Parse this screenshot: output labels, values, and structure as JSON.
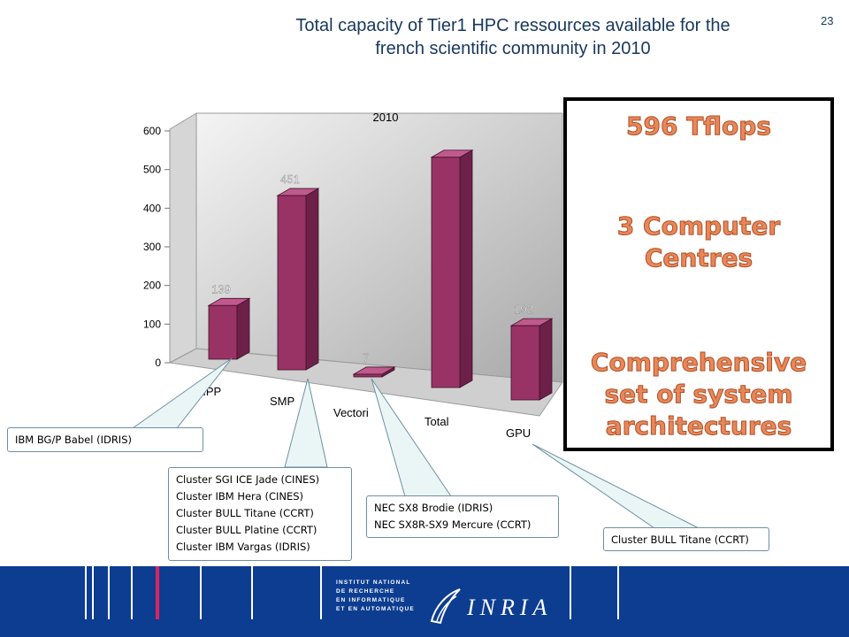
{
  "header": {
    "title_line1": "Total capacity of Tier1 HPC ressources available for the",
    "title_line2": "french scientific community in 2010",
    "page_number": "23"
  },
  "chart_data": {
    "type": "bar",
    "title": "2010",
    "categories": [
      "MPP",
      "SMP",
      "Vectori",
      "Total",
      "GPU"
    ],
    "values": [
      139,
      451,
      7,
      596,
      192
    ],
    "data_labels": [
      "139",
      "451",
      "7",
      "",
      "192"
    ],
    "ylim": [
      0,
      600
    ],
    "yticks": [
      "0",
      "100",
      "200",
      "300",
      "400",
      "500",
      "600"
    ],
    "xlabel": "",
    "ylabel": "",
    "bar_color": "#993366",
    "grid": false
  },
  "info_box": {
    "line1": "596 Tflops",
    "line2a": "3 Computer",
    "line2b": "Centres",
    "line3a": "Comprehensive",
    "line3b": "set of system",
    "line3c": "architectures"
  },
  "callouts": {
    "mpp": [
      "IBM BG/P Babel (IDRIS)"
    ],
    "smp": [
      "Cluster SGI ICE Jade (CINES)",
      "Cluster IBM Hera (CINES)",
      "Cluster BULL Titane (CCRT)",
      "Cluster BULL Platine (CCRT)",
      "Cluster IBM Vargas (IDRIS)"
    ],
    "vector": [
      "NEC SX8 Brodie (IDRIS)",
      "NEC SX8R-SX9 Mercure (CCRT)"
    ],
    "gpu": [
      "Cluster BULL Titane (CCRT)"
    ]
  },
  "footer": {
    "institute": [
      "INSTITUT NATIONAL",
      "DE RECHERCHE",
      "EN INFORMATIQUE",
      "ET EN AUTOMATIQUE"
    ],
    "logo_text": "INRIA",
    "background": "#0c3d91",
    "accent": "#d9235f"
  }
}
